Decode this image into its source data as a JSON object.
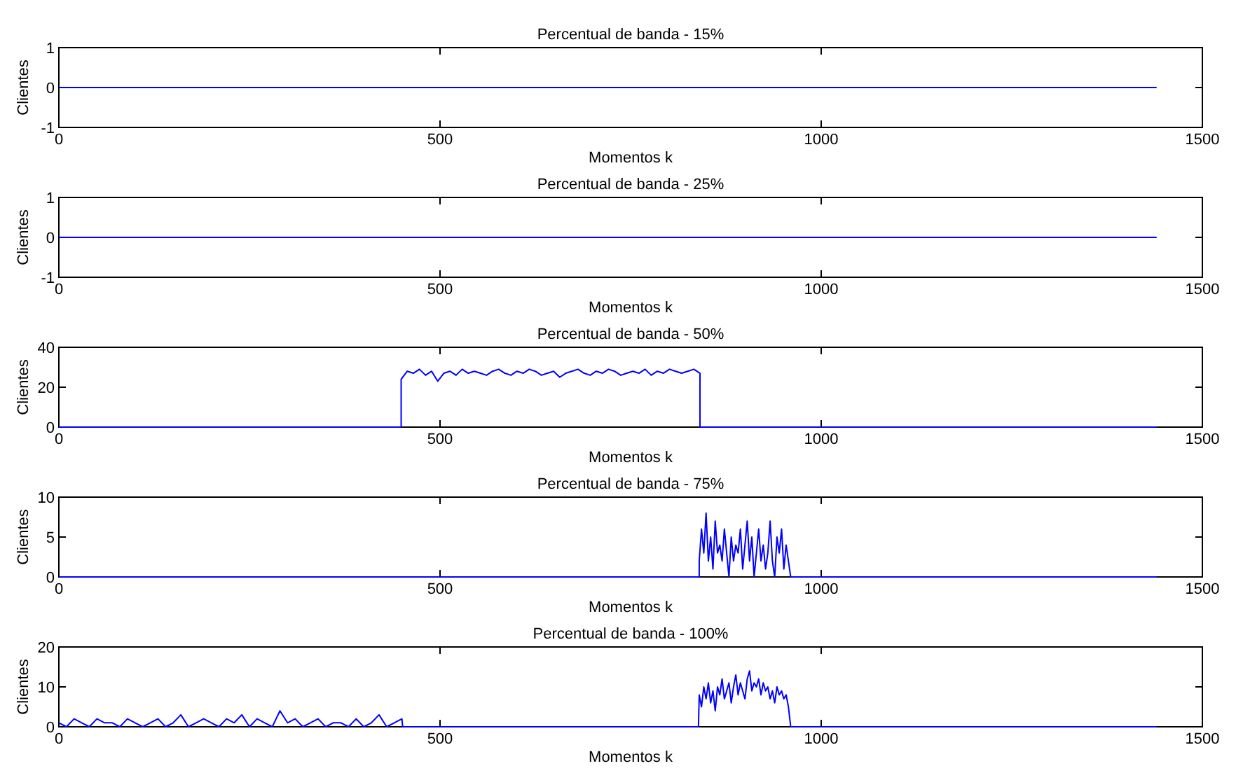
{
  "chart_data": [
    {
      "type": "line",
      "title": "Percentual de banda - 15%",
      "xlabel": "Momentos k",
      "ylabel": "Clientes",
      "xlim": [
        0,
        1500
      ],
      "xticks": [
        0,
        500,
        1000,
        1500
      ],
      "ylim": [
        -1,
        1
      ],
      "yticks": [
        -1,
        0,
        1
      ],
      "grid": false,
      "series": [
        {
          "color": "#0000ff",
          "x": [
            0,
            1440
          ],
          "values": [
            0,
            0
          ]
        }
      ]
    },
    {
      "type": "line",
      "title": "Percentual de banda - 25%",
      "xlabel": "Momentos k",
      "ylabel": "Clientes",
      "xlim": [
        0,
        1500
      ],
      "xticks": [
        0,
        500,
        1000,
        1500
      ],
      "ylim": [
        -1,
        1
      ],
      "yticks": [
        -1,
        0,
        1
      ],
      "grid": false,
      "series": [
        {
          "color": "#0000ff",
          "x": [
            0,
            1440
          ],
          "values": [
            0,
            0
          ]
        }
      ]
    },
    {
      "type": "line",
      "title": "Percentual de banda - 50%",
      "xlabel": "Momentos k",
      "ylabel": "Clientes",
      "xlim": [
        0,
        1500
      ],
      "xticks": [
        0,
        500,
        1000,
        1500
      ],
      "ylim": [
        0,
        40
      ],
      "yticks": [
        0,
        20,
        40
      ],
      "grid": false,
      "series": [
        {
          "color": "#0000ff",
          "x": [
            0,
            449,
            449,
            457,
            465,
            473,
            481,
            489,
            497,
            505,
            513,
            521,
            529,
            537,
            545,
            553,
            561,
            569,
            577,
            585,
            593,
            601,
            609,
            617,
            625,
            633,
            641,
            649,
            657,
            665,
            673,
            681,
            689,
            697,
            705,
            713,
            721,
            729,
            737,
            745,
            753,
            761,
            769,
            777,
            785,
            793,
            801,
            809,
            817,
            825,
            833,
            841,
            841,
            1440
          ],
          "values": [
            0,
            0,
            24,
            28,
            27,
            29,
            26,
            28,
            23,
            27,
            28,
            26,
            29,
            27,
            28,
            27,
            26,
            28,
            29,
            27,
            26,
            28,
            27,
            29,
            28,
            26,
            27,
            28,
            25,
            27,
            28,
            29,
            27,
            26,
            28,
            27,
            29,
            28,
            26,
            27,
            28,
            27,
            29,
            26,
            28,
            27,
            29,
            28,
            27,
            28,
            29,
            27,
            0,
            0
          ]
        }
      ]
    },
    {
      "type": "line",
      "title": "Percentual de banda - 75%",
      "xlabel": "Momentos k",
      "ylabel": "Clientes",
      "xlim": [
        0,
        1500
      ],
      "xticks": [
        0,
        500,
        1000,
        1500
      ],
      "ylim": [
        0,
        10
      ],
      "yticks": [
        0,
        5,
        10
      ],
      "grid": false,
      "series": [
        {
          "color": "#0000ff",
          "x": [
            0,
            840,
            840,
            843,
            846,
            849,
            852,
            855,
            858,
            861,
            864,
            867,
            870,
            873,
            876,
            879,
            882,
            885,
            888,
            891,
            894,
            897,
            900,
            903,
            906,
            909,
            912,
            915,
            918,
            921,
            924,
            927,
            930,
            933,
            936,
            939,
            942,
            945,
            948,
            951,
            954,
            957,
            960,
            1440
          ],
          "values": [
            0,
            0,
            2,
            6,
            3,
            8,
            2,
            5,
            1,
            7,
            3,
            4,
            2,
            6,
            3,
            0,
            5,
            2,
            4,
            3,
            6,
            1,
            4,
            7,
            2,
            5,
            0,
            3,
            6,
            2,
            4,
            1,
            3,
            7,
            2,
            0,
            5,
            3,
            6,
            1,
            4,
            2,
            0,
            0
          ]
        }
      ]
    },
    {
      "type": "line",
      "title": "Percentual de banda - 100%",
      "xlabel": "Momentos k",
      "ylabel": "Clientes",
      "xlim": [
        0,
        1500
      ],
      "xticks": [
        0,
        500,
        1000,
        1500
      ],
      "ylim": [
        0,
        20
      ],
      "yticks": [
        0,
        10,
        20
      ],
      "grid": false,
      "series": [
        {
          "color": "#0000ff",
          "x": [
            0,
            10,
            20,
            30,
            40,
            50,
            60,
            70,
            80,
            90,
            100,
            110,
            120,
            130,
            140,
            150,
            160,
            170,
            180,
            190,
            200,
            210,
            220,
            230,
            240,
            250,
            260,
            270,
            280,
            290,
            300,
            310,
            320,
            330,
            340,
            350,
            360,
            370,
            380,
            390,
            400,
            410,
            420,
            430,
            440,
            450,
            451,
            839,
            840,
            843,
            846,
            849,
            852,
            855,
            858,
            861,
            864,
            867,
            870,
            873,
            876,
            879,
            882,
            885,
            888,
            891,
            894,
            897,
            900,
            903,
            906,
            909,
            912,
            915,
            918,
            921,
            924,
            927,
            930,
            933,
            936,
            939,
            942,
            945,
            948,
            951,
            954,
            957,
            960,
            1440
          ],
          "values": [
            1,
            0,
            2,
            1,
            0,
            2,
            1,
            1,
            0,
            2,
            1,
            0,
            1,
            2,
            0,
            1,
            3,
            0,
            1,
            2,
            1,
            0,
            2,
            1,
            3,
            0,
            2,
            1,
            0,
            4,
            1,
            2,
            0,
            1,
            2,
            0,
            1,
            1,
            0,
            2,
            0,
            1,
            3,
            0,
            1,
            2,
            0,
            0,
            8,
            5,
            10,
            7,
            11,
            6,
            9,
            4,
            10,
            8,
            12,
            7,
            9,
            11,
            6,
            10,
            13,
            8,
            11,
            9,
            7,
            12,
            14,
            9,
            11,
            10,
            12,
            8,
            11,
            9,
            10,
            7,
            9,
            6,
            10,
            8,
            9,
            7,
            8,
            5,
            0,
            0
          ]
        }
      ]
    }
  ]
}
